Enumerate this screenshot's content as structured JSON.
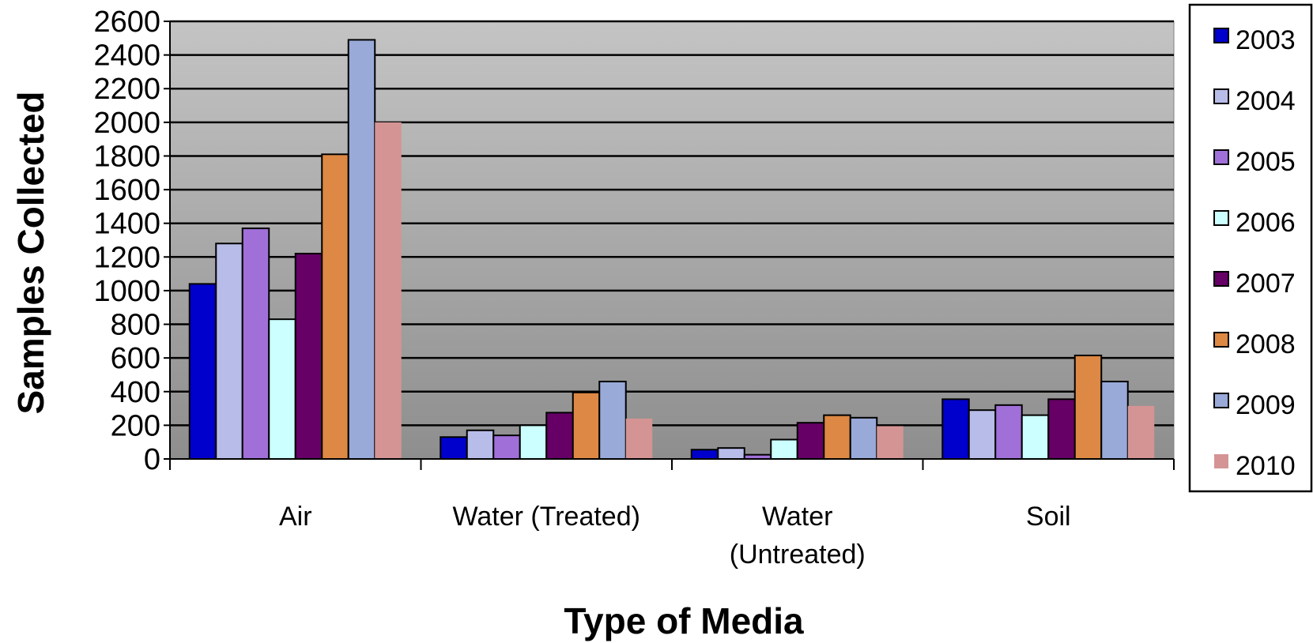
{
  "chart_data": {
    "type": "bar",
    "title": "",
    "xlabel": "Type of Media",
    "ylabel": "Samples Collected",
    "categories": [
      "Air",
      "Water (Treated)",
      "Water\n(Untreated)",
      "Soil"
    ],
    "ylim": [
      0,
      2600
    ],
    "ytick_step": 200,
    "grid": true,
    "legend_position": "right",
    "series": [
      {
        "name": "2003",
        "color": "#0000cc",
        "values": [
          1040,
          130,
          55,
          355
        ]
      },
      {
        "name": "2004",
        "color": "#b8bce8",
        "values": [
          1280,
          170,
          65,
          290
        ]
      },
      {
        "name": "2005",
        "color": "#a070d8",
        "values": [
          1370,
          140,
          25,
          320
        ]
      },
      {
        "name": "2006",
        "color": "#ccffff",
        "values": [
          830,
          200,
          115,
          260
        ]
      },
      {
        "name": "2007",
        "color": "#660066",
        "values": [
          1220,
          275,
          215,
          355
        ]
      },
      {
        "name": "2008",
        "color": "#dd8844",
        "values": [
          1810,
          395,
          260,
          615
        ]
      },
      {
        "name": "2009",
        "color": "#99aad8",
        "values": [
          2490,
          460,
          245,
          460
        ]
      },
      {
        "name": "2010",
        "color": "#d49494",
        "values": [
          2000,
          240,
          195,
          315
        ]
      }
    ]
  }
}
